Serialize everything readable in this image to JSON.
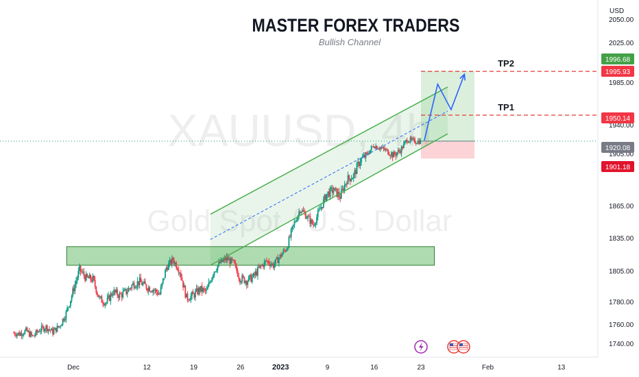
{
  "header": {
    "title": "MASTER FOREX TRADERS",
    "subtitle": "Bullish Channel"
  },
  "watermark": {
    "symbol": "XAUUSD, 4h",
    "name": "Gold Spot / U.S. Dollar"
  },
  "chart_data": {
    "type": "candlestick",
    "currency": "USD",
    "y_ticks": [
      {
        "label": "2050.00",
        "value": 2050
      },
      {
        "label": "2025.00",
        "value": 2025
      },
      {
        "label": "1985.00",
        "value": 1985
      },
      {
        "label": "1940.00",
        "value": 1940
      },
      {
        "label": "1905.00",
        "value": 1905
      },
      {
        "label": "1865.00",
        "value": 1865
      },
      {
        "label": "1835.00",
        "value": 1835
      },
      {
        "label": "1805.00",
        "value": 1805
      },
      {
        "label": "1780.00",
        "value": 1780
      },
      {
        "label": "1760.00",
        "value": 1760
      },
      {
        "label": "1740.00",
        "value": 1740
      }
    ],
    "x_ticks": [
      {
        "label": "Dec",
        "value": 0
      },
      {
        "label": "12",
        "value": 11
      },
      {
        "label": "19",
        "value": 18
      },
      {
        "label": "26",
        "value": 25
      },
      {
        "label": "2023",
        "value": 31
      },
      {
        "label": "9",
        "value": 38
      },
      {
        "label": "16",
        "value": 45
      },
      {
        "label": "23",
        "value": 52
      },
      {
        "label": "Feb",
        "value": 62
      },
      {
        "label": "13",
        "value": 73
      }
    ],
    "price_tags": [
      {
        "label": "1996.68",
        "value": 1996.68,
        "color": "#43a047",
        "role": "tp2_box"
      },
      {
        "label": "1995.93",
        "value": 1995.93,
        "color": "#f23645",
        "role": "tp2"
      },
      {
        "label": "1950.14",
        "value": 1950.14,
        "color": "#f23645",
        "role": "tp1"
      },
      {
        "label": "1920.08",
        "value": 1920.08,
        "color": "#787b86",
        "role": "last"
      },
      {
        "label": "1901.18",
        "value": 1901.18,
        "color": "#e0142c",
        "role": "stop"
      }
    ],
    "levels": [
      {
        "name": "TP2",
        "value": 1995.93
      },
      {
        "name": "TP1",
        "value": 1950.14
      }
    ],
    "support_zone": {
      "from": 1810,
      "to": 1827,
      "start_day": -1,
      "end_day": 54
    },
    "channel": {
      "lower": [
        [
          20.5,
          1810
        ],
        [
          56,
          1929
        ]
      ],
      "upper": [
        [
          20.5,
          1857
        ],
        [
          56,
          1980
        ]
      ]
    },
    "trade_box": {
      "start_day": 52,
      "end_day": 60,
      "entry": 1920.08,
      "target": 1996.68,
      "stop": 1901.18
    },
    "projection": [
      [
        52.5,
        1921
      ],
      [
        54.5,
        1983
      ],
      [
        56.5,
        1956
      ],
      [
        58.5,
        1993
      ]
    ],
    "closes": [
      [
        -9,
        1751
      ],
      [
        -8,
        1750
      ],
      [
        -7,
        1753
      ],
      [
        -6,
        1747
      ],
      [
        -5,
        1754
      ],
      [
        -4,
        1757
      ],
      [
        -3,
        1752
      ],
      [
        -2,
        1758
      ],
      [
        -1,
        1770
      ],
      [
        0,
        1788
      ],
      [
        1,
        1806
      ],
      [
        2,
        1799
      ],
      [
        3,
        1798
      ],
      [
        4,
        1782
      ],
      [
        5,
        1779
      ],
      [
        6,
        1788
      ],
      [
        7,
        1785
      ],
      [
        8,
        1788
      ],
      [
        9,
        1794
      ],
      [
        10,
        1796
      ],
      [
        11,
        1792
      ],
      [
        12,
        1790
      ],
      [
        13,
        1786
      ],
      [
        14,
        1808
      ],
      [
        15,
        1815
      ],
      [
        16,
        1805
      ],
      [
        17,
        1783
      ],
      [
        18,
        1785
      ],
      [
        19,
        1790
      ],
      [
        20,
        1788
      ],
      [
        21,
        1804
      ],
      [
        22,
        1812
      ],
      [
        23,
        1816
      ],
      [
        24,
        1812
      ],
      [
        25,
        1799
      ],
      [
        26,
        1797
      ],
      [
        27,
        1800
      ],
      [
        28,
        1808
      ],
      [
        29,
        1814
      ],
      [
        30,
        1810
      ],
      [
        31,
        1818
      ],
      [
        32,
        1826
      ],
      [
        33,
        1846
      ],
      [
        34,
        1862
      ],
      [
        35,
        1855
      ],
      [
        36,
        1847
      ],
      [
        37,
        1862
      ],
      [
        38,
        1874
      ],
      [
        39,
        1877
      ],
      [
        40,
        1872
      ],
      [
        41,
        1885
      ],
      [
        42,
        1888
      ],
      [
        43,
        1900
      ],
      [
        44,
        1904
      ],
      [
        45,
        1915
      ],
      [
        46,
        1912
      ],
      [
        47,
        1908
      ],
      [
        48,
        1904
      ],
      [
        49,
        1909
      ],
      [
        50,
        1922
      ],
      [
        51,
        1920
      ],
      [
        52,
        1920.08
      ]
    ]
  }
}
